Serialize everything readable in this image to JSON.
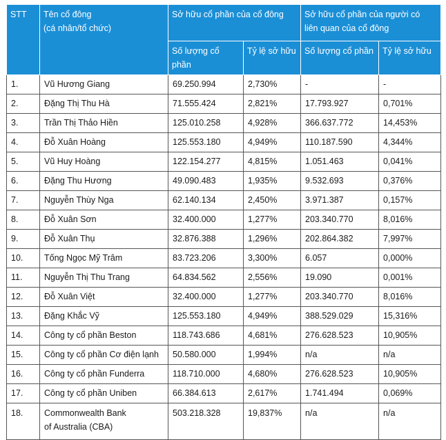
{
  "header": {
    "stt": "STT",
    "name_line1": "Tên cổ đông",
    "name_line2": "(cá nhân/tổ chức)",
    "group1": "Sở hữu cổ phần của cổ đông",
    "group2_line1": "Sở hữu cổ phần của người có",
    "group2_line2": "liên quan của cổ đông",
    "qty1": "Số lượng cổ phần",
    "pct1": "Tỷ lệ sở hữu",
    "qty2": "Số lượng cổ phần",
    "pct2": "Tỷ lệ sở hữu"
  },
  "rows": [
    {
      "stt": "1.",
      "name": "Vũ Hương Giang",
      "qty": "69.250.994",
      "pct": "2,730%",
      "rel_qty": "-",
      "rel_pct": "-"
    },
    {
      "stt": "2.",
      "name": "Đặng Thị Thu Hà",
      "qty": "71.555.424",
      "pct": "2,821%",
      "rel_qty": "17.793.927",
      "rel_pct": "0,701%"
    },
    {
      "stt": "3.",
      "name": "Trần Thị Thảo Hiền",
      "qty": "125.010.258",
      "pct": "4,928%",
      "rel_qty": "366.637.772",
      "rel_pct": "14,453%"
    },
    {
      "stt": "4.",
      "name": "Đỗ Xuân Hoàng",
      "qty": "125.553.180",
      "pct": "4,949%",
      "rel_qty": "110.187.590",
      "rel_pct": "4,344%"
    },
    {
      "stt": "5.",
      "name": "Vũ Huy Hoàng",
      "qty": "122.154.277",
      "pct": "4,815%",
      "rel_qty": "1.051.463",
      "rel_pct": "0,041%"
    },
    {
      "stt": "6.",
      "name": "Đặng Thu Hương",
      "qty": "49.090.483",
      "pct": "1,935%",
      "rel_qty": "9.532.693",
      "rel_pct": "0,376%"
    },
    {
      "stt": "7.",
      "name": "Nguyễn Thùy Nga",
      "qty": "62.140.134",
      "pct": "2,450%",
      "rel_qty": "3.971.387",
      "rel_pct": "0,157%"
    },
    {
      "stt": "8.",
      "name": "Đỗ Xuân Sơn",
      "qty": "32.400.000",
      "pct": "1,277%",
      "rel_qty": "203.340.770",
      "rel_pct": "8,016%"
    },
    {
      "stt": "9.",
      "name": "Đỗ Xuân Thụ",
      "qty": "32.876.388",
      "pct": "1,296%",
      "rel_qty": "202.864.382",
      "rel_pct": "7,997%"
    },
    {
      "stt": "10.",
      "name": "Tống Ngọc Mỹ Trâm",
      "qty": "83.723.206",
      "pct": "3,300%",
      "rel_qty": "6.057",
      "rel_pct": "0,000%"
    },
    {
      "stt": "11.",
      "name": "Nguyễn Thị Thu Trang",
      "qty": "64.834.562",
      "pct": "2,556%",
      "rel_qty": "19.090",
      "rel_pct": "0,001%"
    },
    {
      "stt": "12.",
      "name": "Đỗ Xuân Việt",
      "qty": "32.400.000",
      "pct": "1,277%",
      "rel_qty": "203.340.770",
      "rel_pct": "8,016%"
    },
    {
      "stt": "13.",
      "name": "Đặng Khắc Vỹ",
      "qty": "125.553.180",
      "pct": "4,949%",
      "rel_qty": "388.529.029",
      "rel_pct": "15,316%"
    },
    {
      "stt": "14.",
      "name": "Công ty cổ phần Beston",
      "qty": "118.743.686",
      "pct": "4,681%",
      "rel_qty": "276.628.523",
      "rel_pct": "10,905%"
    },
    {
      "stt": "15.",
      "name": "Công ty cổ phần Cơ điện lạnh",
      "qty": "50.580.000",
      "pct": "1,994%",
      "rel_qty": "n/a",
      "rel_pct": "n/a"
    },
    {
      "stt": "16.",
      "name": "Công ty cổ phần Funderra",
      "qty": "118.710.000",
      "pct": "4,680%",
      "rel_qty": "276.628.523",
      "rel_pct": "10,905%"
    },
    {
      "stt": "17.",
      "name": "Công ty cổ phần Uniben",
      "qty": "66.384.613",
      "pct": "2,617%",
      "rel_qty": "1.741.494",
      "rel_pct": "0,069%"
    }
  ],
  "last_row": {
    "stt": "18.",
    "name_line1": "Commonwealth Bank",
    "name_line2": "of Australia (CBA)",
    "qty": "503.218.328",
    "pct": "19,837%",
    "rel_qty": "n/a",
    "rel_pct": "n/a"
  }
}
